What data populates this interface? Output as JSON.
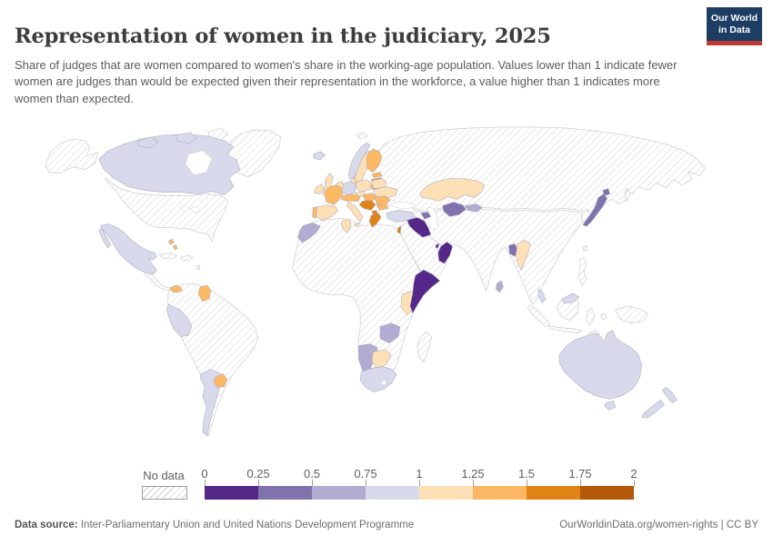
{
  "header": {
    "title": "Representation of women in the judiciary, 2025",
    "subtitle": "Share of judges that are women compared to women's share in the working-age population. Values lower than 1 indicate fewer women are judges than would be expected given their representation in the workforce, a value higher than 1 indicates more women than expected."
  },
  "logo": {
    "line1": "Our World",
    "line2": "in Data",
    "bg_color": "#1d3d63",
    "accent_color": "#bf3936"
  },
  "legend": {
    "no_data_label": "No data",
    "ticks": [
      "0",
      "0.25",
      "0.5",
      "0.75",
      "1",
      "1.25",
      "1.5",
      "1.75",
      "2"
    ]
  },
  "chart_data": {
    "type": "choropleth_map",
    "title": "Representation of women in the judiciary, 2025",
    "value_description": "Ratio of women's share among judges to women's share of working-age population",
    "value_range": [
      0,
      2
    ],
    "legend_bands": [
      {
        "range": "0–0.25",
        "color": "#542788"
      },
      {
        "range": "0.25–0.5",
        "color": "#8073ac"
      },
      {
        "range": "0.5–0.75",
        "color": "#b2abd2"
      },
      {
        "range": "0.75–1",
        "color": "#d8daeb"
      },
      {
        "range": "1–1.25",
        "color": "#fee0b6"
      },
      {
        "range": "1.25–1.5",
        "color": "#fdb863"
      },
      {
        "range": "1.5–1.75",
        "color": "#e08214"
      },
      {
        "range": "1.75–2",
        "color": "#b35806"
      }
    ],
    "no_data": {
      "label": "No data",
      "pattern": "diagonal-hatch"
    },
    "regions": [
      {
        "id": "canada",
        "name": "Canada",
        "band": "0.75–1",
        "color": "#d8daeb"
      },
      {
        "id": "mexico",
        "name": "Mexico",
        "band": "0.75–1",
        "color": "#d8daeb"
      },
      {
        "id": "bahamas",
        "name": "Bahamas",
        "band": "1.25–1.5",
        "color": "#fdb863"
      },
      {
        "id": "panama",
        "name": "Panama",
        "band": "1.25–1.5",
        "color": "#fdb863"
      },
      {
        "id": "guyana",
        "name": "Guyana",
        "band": "1.25–1.5",
        "color": "#fdb863"
      },
      {
        "id": "peru",
        "name": "Peru",
        "band": "0.75–1",
        "color": "#d8daeb"
      },
      {
        "id": "argentina",
        "name": "Argentina",
        "band": "0.75–1",
        "color": "#d8daeb"
      },
      {
        "id": "uruguay",
        "name": "Uruguay",
        "band": "1.25–1.5",
        "color": "#fdb863"
      },
      {
        "id": "iceland",
        "name": "Iceland",
        "band": "0.75–1",
        "color": "#d8daeb"
      },
      {
        "id": "ireland",
        "name": "Ireland",
        "band": "1–1.25",
        "color": "#fee0b6"
      },
      {
        "id": "uk",
        "name": "United Kingdom",
        "band": "1–1.25",
        "color": "#fee0b6"
      },
      {
        "id": "portugal",
        "name": "Portugal",
        "band": "1.25–1.5",
        "color": "#fdb863"
      },
      {
        "id": "spain",
        "name": "Spain",
        "band": "1–1.25",
        "color": "#fee0b6"
      },
      {
        "id": "france",
        "name": "France",
        "band": "1.25–1.5",
        "color": "#fdb863"
      },
      {
        "id": "benelux",
        "name": "Belgium & Netherlands",
        "band": "1–1.25",
        "color": "#fee0b6"
      },
      {
        "id": "germany",
        "name": "Germany",
        "band": "0.75–1",
        "color": "#d8daeb"
      },
      {
        "id": "denmark",
        "name": "Denmark",
        "band": "1–1.25",
        "color": "#fee0b6"
      },
      {
        "id": "norway",
        "name": "Norway",
        "band": "0.75–1",
        "color": "#d8daeb"
      },
      {
        "id": "sweden",
        "name": "Sweden",
        "band": "1–1.25",
        "color": "#fee0b6"
      },
      {
        "id": "finland",
        "name": "Finland",
        "band": "1.25–1.5",
        "color": "#fdb863"
      },
      {
        "id": "estonia",
        "name": "Estonia",
        "band": "1.25–1.5",
        "color": "#fdb863"
      },
      {
        "id": "latvia",
        "name": "Latvia",
        "band": "1.5–1.75",
        "color": "#e08214"
      },
      {
        "id": "lithuania",
        "name": "Lithuania",
        "band": "1.25–1.5",
        "color": "#fdb863"
      },
      {
        "id": "poland",
        "name": "Poland",
        "band": "1–1.25",
        "color": "#fee0b6"
      },
      {
        "id": "belarus",
        "name": "Belarus",
        "band": "1–1.25",
        "color": "#fee0b6"
      },
      {
        "id": "ukraine",
        "name": "Ukraine",
        "band": "1–1.25",
        "color": "#fee0b6"
      },
      {
        "id": "czechia",
        "name": "Czechia",
        "band": "1–1.25",
        "color": "#fee0b6"
      },
      {
        "id": "austria",
        "name": "Austria & Switzerland",
        "band": "1.25–1.5",
        "color": "#fdb863"
      },
      {
        "id": "hungary",
        "name": "Hungary & Slovakia",
        "band": "1.25–1.5",
        "color": "#fdb863"
      },
      {
        "id": "romania",
        "name": "Romania",
        "band": "1.25–1.5",
        "color": "#fdb863"
      },
      {
        "id": "balkans",
        "name": "Croatia, Bosnia & Serbia",
        "band": "1.5–1.75",
        "color": "#e08214"
      },
      {
        "id": "bulgaria",
        "name": "Bulgaria",
        "band": "1.25–1.5",
        "color": "#fdb863"
      },
      {
        "id": "albania",
        "name": "Albania & North Macedonia",
        "band": "1.5–1.75",
        "color": "#e08214"
      },
      {
        "id": "greece",
        "name": "Greece",
        "band": "1.5–1.75",
        "color": "#e08214"
      },
      {
        "id": "italy",
        "name": "Italy",
        "band": "1–1.25",
        "color": "#fee0b6"
      },
      {
        "id": "turkey",
        "name": "Turkey",
        "band": "0.75–1",
        "color": "#d8daeb"
      },
      {
        "id": "azerbaijan",
        "name": "Azerbaijan",
        "band": "0.25–0.5",
        "color": "#8073ac"
      },
      {
        "id": "morocco",
        "name": "Morocco",
        "band": "0.5–0.75",
        "color": "#b2abd2"
      },
      {
        "id": "tunisia",
        "name": "Tunisia",
        "band": "1–1.25",
        "color": "#fee0b6"
      },
      {
        "id": "israel",
        "name": "Israel",
        "band": "1.5–1.75",
        "color": "#e08214"
      },
      {
        "id": "iraq",
        "name": "Iraq",
        "band": "0–0.25",
        "color": "#542788"
      },
      {
        "id": "qatar",
        "name": "Qatar",
        "band": "0–0.25",
        "color": "#542788"
      },
      {
        "id": "oman",
        "name": "Oman",
        "band": "0–0.25",
        "color": "#542788"
      },
      {
        "id": "somalia",
        "name": "Somalia",
        "band": "0–0.25",
        "color": "#542788"
      },
      {
        "id": "kenya",
        "name": "Kenya",
        "band": "1–1.25",
        "color": "#fee0b6"
      },
      {
        "id": "zambia",
        "name": "Zambia",
        "band": "0.5–0.75",
        "color": "#b2abd2"
      },
      {
        "id": "namibia",
        "name": "Namibia",
        "band": "0.5–0.75",
        "color": "#b2abd2"
      },
      {
        "id": "botswana",
        "name": "Botswana",
        "band": "1–1.25",
        "color": "#fee0b6"
      },
      {
        "id": "south-africa",
        "name": "South Africa",
        "band": "0.75–1",
        "color": "#d8daeb"
      },
      {
        "id": "kazakhstan",
        "name": "Kazakhstan",
        "band": "1–1.25",
        "color": "#fee0b6"
      },
      {
        "id": "uzbekistan",
        "name": "Uzbekistan",
        "band": "0.25–0.5",
        "color": "#8073ac"
      },
      {
        "id": "kyrgyzstan",
        "name": "Kyrgyzstan",
        "band": "0.5–0.75",
        "color": "#b2abd2"
      },
      {
        "id": "bangladesh",
        "name": "Bangladesh",
        "band": "0.25–0.5",
        "color": "#8073ac"
      },
      {
        "id": "myanmar",
        "name": "Myanmar",
        "band": "1–1.25",
        "color": "#fee0b6"
      },
      {
        "id": "sri-lanka",
        "name": "Sri Lanka",
        "band": "0.5–0.75",
        "color": "#b2abd2"
      },
      {
        "id": "malaysia",
        "name": "Malaysia",
        "band": "0.75–1",
        "color": "#d8daeb"
      },
      {
        "id": "japan",
        "name": "Japan",
        "band": "0.25–0.5",
        "color": "#8073ac"
      },
      {
        "id": "australia",
        "name": "Australia",
        "band": "0.75–1",
        "color": "#d8daeb"
      },
      {
        "id": "new-zealand",
        "name": "New Zealand",
        "band": "0.75–1",
        "color": "#d8daeb"
      }
    ],
    "no_data_regions": [
      "United States",
      "Greenland",
      "Cuba",
      "Haiti & Dominican Republic",
      "Colombia",
      "Venezuela",
      "Suriname",
      "Ecuador",
      "Brazil",
      "Bolivia",
      "Chile",
      "Paraguay",
      "Russia",
      "China",
      "Mongolia",
      "India",
      "Pakistan",
      "Afghanistan",
      "Iran",
      "Saudi Arabia",
      "Egypt",
      "Libya",
      "Algeria",
      "West & Central Africa",
      "Sudan",
      "Ethiopia",
      "Tanzania",
      "Mozambique",
      "Zimbabwe",
      "Madagascar",
      "Thailand",
      "Vietnam",
      "Indonesia",
      "Philippines",
      "South Korea",
      "North Korea",
      "Papua New Guinea"
    ]
  },
  "footer": {
    "source_label": "Data source:",
    "source_text": " Inter-Parliamentary Union and United Nations Development Programme",
    "link_text": "OurWorldinData.org/women-rights | CC BY"
  }
}
